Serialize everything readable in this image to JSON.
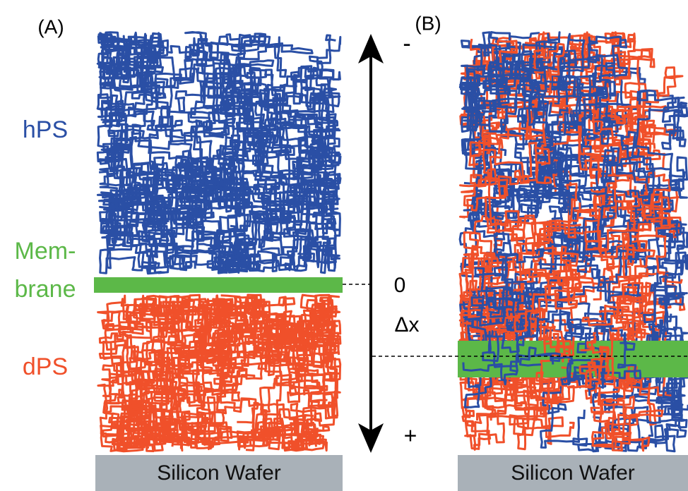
{
  "panels": [
    {
      "label": "(A)",
      "layers": [
        "hPS",
        "Mem-",
        "brane",
        "dPS"
      ],
      "substrate": "Silicon Wafer"
    },
    {
      "label": "(B)",
      "substrate": "Silicon Wafer"
    }
  ],
  "axis": {
    "top": "-",
    "zero": "0",
    "label": "Δx",
    "bottom": "+"
  }
}
